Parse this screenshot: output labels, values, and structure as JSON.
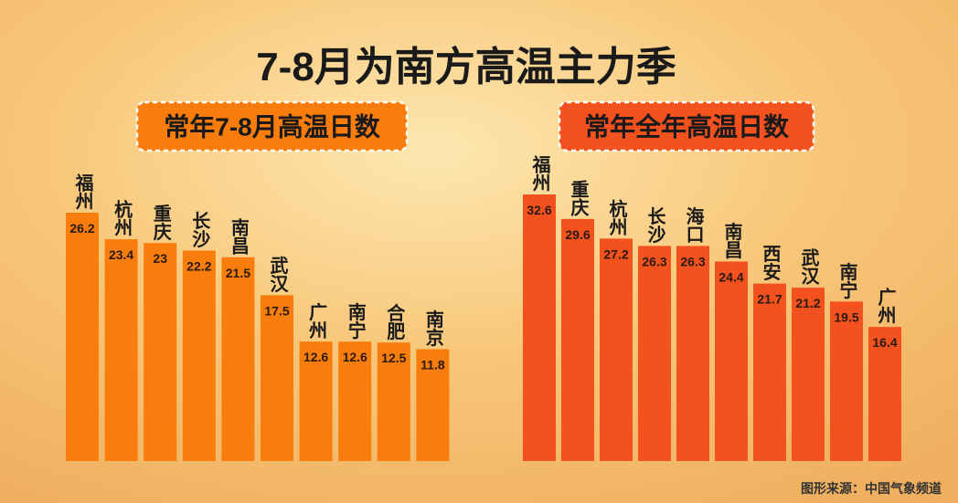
{
  "page": {
    "title": "7-8月为南方高温主力季",
    "source": "图形来源：中国气象频道"
  },
  "chart_data": [
    {
      "type": "bar",
      "title": "常年7-8月高温日数",
      "color": "#f97d0c",
      "categories": [
        "福州",
        "杭州",
        "重庆",
        "长沙",
        "南昌",
        "武汉",
        "广州",
        "南宁",
        "合肥",
        "南京"
      ],
      "values": [
        26.2,
        23.4,
        23,
        22.2,
        21.5,
        17.5,
        12.6,
        12.6,
        12.5,
        11.8
      ]
    },
    {
      "type": "bar",
      "title": "常年全年高温日数",
      "color": "#f3521f",
      "categories": [
        "福州",
        "重庆",
        "杭州",
        "长沙",
        "海口",
        "南昌",
        "西安",
        "武汉",
        "南宁",
        "广州"
      ],
      "values": [
        32.6,
        29.6,
        27.2,
        26.3,
        26.3,
        24.4,
        21.7,
        21.2,
        19.5,
        16.4
      ]
    }
  ]
}
